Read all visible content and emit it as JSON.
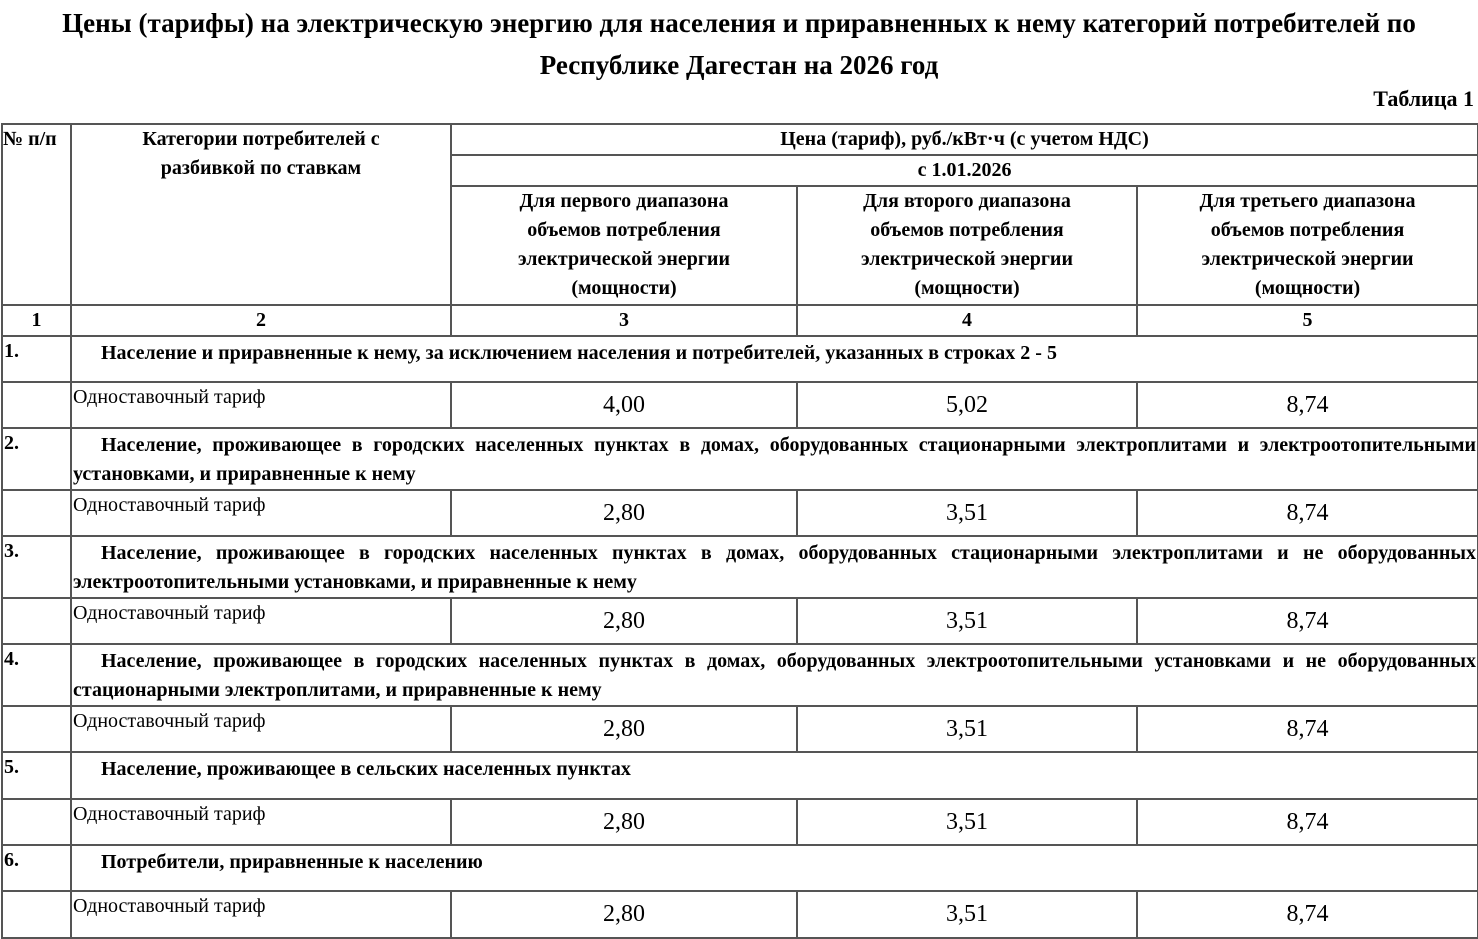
{
  "title": "Цены (тарифы) на электрическую энергию для населения и приравненных к нему категорий потребителей по Республике Дагестан на 2026 год",
  "table_label": "Таблица 1",
  "header": {
    "num": "№ п/п",
    "category": "Категории потребителей с разбивкой по ставкам",
    "price": "Цена (тариф), руб./кВт·ч (с учетом НДС)",
    "date": "с 1.01.2026",
    "range1": "Для первого диапазона объемов потребления электрической энергии (мощности)",
    "range2": "Для второго диапазона объемов потребления электрической энергии (мощности)",
    "range3": "Для третьего диапазона объемов потребления электрической энергии (мощности)",
    "col_numbers": [
      "1",
      "2",
      "3",
      "4",
      "5"
    ]
  },
  "sections": [
    {
      "num": "1.",
      "text": "Население и приравненные к нему, за исключением населения и потребителей, указанных в строках 2 - 5",
      "tariff": "Одноставочный тариф",
      "values": [
        "4,00",
        "5,02",
        "8,74"
      ]
    },
    {
      "num": "2.",
      "text": "Население, проживающее в городских населенных пунктах в домах, оборудованных стационарными электроплитами и электроотопительными установками, и приравненные к нему",
      "tariff": "Одноставочный тариф",
      "values": [
        "2,80",
        "3,51",
        "8,74"
      ]
    },
    {
      "num": "3.",
      "text": "Население, проживающее в городских населенных пунктах в домах, оборудованных стационарными электроплитами и не оборудованных электроотопительными установками, и приравненные к нему",
      "tariff": "Одноставочный тариф",
      "values": [
        "2,80",
        "3,51",
        "8,74"
      ]
    },
    {
      "num": "4.",
      "text": "Население, проживающее в городских населенных пунктах в домах, оборудованных электроотопительными установками и не оборудованных стационарными электроплитами, и приравненные к нему",
      "tariff": "Одноставочный тариф",
      "values": [
        "2,80",
        "3,51",
        "8,74"
      ]
    },
    {
      "num": "5.",
      "text": "Население, проживающее в сельских населенных пунктах",
      "tariff": "Одноставочный тариф",
      "values": [
        "2,80",
        "3,51",
        "8,74"
      ]
    },
    {
      "num": "6.",
      "text": "Потребители, приравненные к населению",
      "tariff": "Одноставочный тариф",
      "values": [
        "2,80",
        "3,51",
        "8,74"
      ]
    }
  ]
}
